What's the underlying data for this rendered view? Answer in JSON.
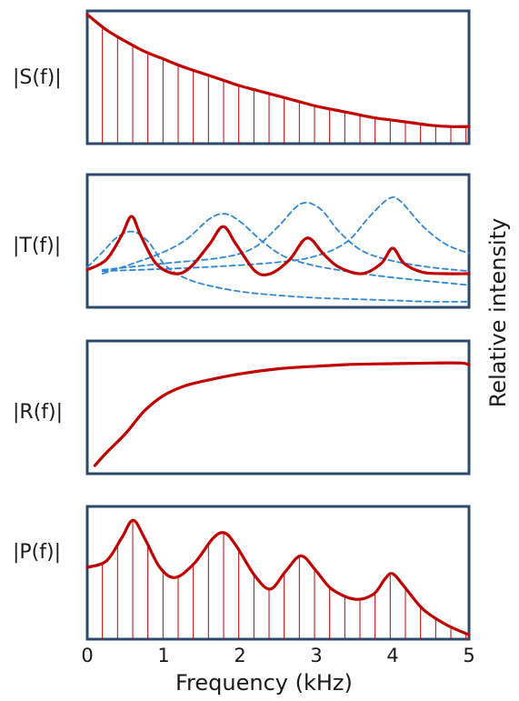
{
  "chart_data": {
    "type": "line",
    "xlabel": "Frequency (kHz)",
    "ylabel": "Relative intensity",
    "xlim": [
      0,
      5
    ],
    "x_ticks": [
      "0",
      "1",
      "2",
      "3",
      "4",
      "5"
    ],
    "colors": {
      "main": "#c00000",
      "stem": "#c00000",
      "dashed": "#2e86d6",
      "frame": "#2c4a6e"
    },
    "panels": [
      {
        "label": "|S(f)|",
        "ylim": [
          0,
          1
        ],
        "stems": true,
        "stem_count": 25,
        "series": [
          {
            "style": "solid",
            "x": [
              0,
              0.25,
              0.5,
              0.75,
              1,
              1.25,
              1.5,
              1.75,
              2,
              2.25,
              2.5,
              2.75,
              3,
              3.25,
              3.5,
              3.75,
              4,
              4.25,
              4.5,
              4.75,
              5
            ],
            "y": [
              1.0,
              0.88,
              0.79,
              0.71,
              0.65,
              0.59,
              0.54,
              0.49,
              0.44,
              0.4,
              0.36,
              0.32,
              0.28,
              0.25,
              0.22,
              0.19,
              0.17,
              0.15,
              0.13,
              0.12,
              0.12
            ]
          }
        ]
      },
      {
        "label": "|T(f)|",
        "ylim": [
          0,
          1
        ],
        "stems": false,
        "series": [
          {
            "style": "solid",
            "x": [
              0,
              0.25,
              0.45,
              0.58,
              0.7,
              0.9,
              1.15,
              1.35,
              1.6,
              1.78,
              1.95,
              2.2,
              2.4,
              2.65,
              2.88,
              3.1,
              3.3,
              3.6,
              3.85,
              4.0,
              4.15,
              4.4,
              4.7,
              5
            ],
            "y": [
              0.28,
              0.36,
              0.55,
              0.7,
              0.55,
              0.33,
              0.25,
              0.3,
              0.48,
              0.62,
              0.48,
              0.27,
              0.25,
              0.36,
              0.53,
              0.4,
              0.3,
              0.25,
              0.33,
              0.45,
              0.33,
              0.26,
              0.25,
              0.25
            ]
          },
          {
            "style": "dashed",
            "x": [
              0,
              0.2,
              0.4,
              0.6,
              0.8,
              1.0,
              1.2,
              1.5,
              2,
              2.5,
              3,
              3.5,
              4,
              4.5,
              5
            ],
            "y": [
              0.3,
              0.42,
              0.54,
              0.58,
              0.5,
              0.33,
              0.24,
              0.17,
              0.11,
              0.08,
              0.06,
              0.05,
              0.04,
              0.03,
              0.03
            ]
          },
          {
            "style": "dashed",
            "x": [
              0.2,
              0.6,
              1.0,
              1.3,
              1.6,
              1.8,
              2.0,
              2.3,
              2.6,
              3.0,
              3.5,
              4.0,
              5
            ],
            "y": [
              0.25,
              0.33,
              0.42,
              0.52,
              0.68,
              0.72,
              0.66,
              0.5,
              0.38,
              0.31,
              0.26,
              0.22,
              0.16
            ]
          },
          {
            "style": "dashed",
            "x": [
              0.2,
              1.0,
              1.8,
              2.2,
              2.5,
              2.8,
              3.05,
              3.3,
              3.6,
              4.0,
              4.5,
              5
            ],
            "y": [
              0.28,
              0.33,
              0.38,
              0.46,
              0.62,
              0.8,
              0.76,
              0.58,
              0.43,
              0.35,
              0.3,
              0.27
            ]
          },
          {
            "style": "dashed",
            "x": [
              0.2,
              1.5,
              2.5,
              3.0,
              3.4,
              3.7,
              3.95,
              4.1,
              4.4,
              4.7,
              5
            ],
            "y": [
              0.27,
              0.3,
              0.34,
              0.39,
              0.5,
              0.7,
              0.84,
              0.82,
              0.62,
              0.48,
              0.41
            ]
          }
        ]
      },
      {
        "label": "|R(f)|",
        "ylim": [
          0,
          1
        ],
        "stems": false,
        "series": [
          {
            "style": "solid",
            "x": [
              0.1,
              0.25,
              0.5,
              0.75,
              1.0,
              1.25,
              1.5,
              2.0,
              2.5,
              3.0,
              3.5,
              4.0,
              4.5,
              4.9,
              5
            ],
            "y": [
              0.05,
              0.15,
              0.3,
              0.48,
              0.6,
              0.67,
              0.71,
              0.77,
              0.81,
              0.83,
              0.845,
              0.85,
              0.855,
              0.855,
              0.84
            ]
          }
        ]
      },
      {
        "label": "|P(f)|",
        "ylim": [
          0,
          1
        ],
        "stems": true,
        "stem_count": 25,
        "series": [
          {
            "style": "solid",
            "x": [
              0,
              0.25,
              0.45,
              0.6,
              0.75,
              0.95,
              1.15,
              1.4,
              1.65,
              1.8,
              1.95,
              2.2,
              2.4,
              2.6,
              2.8,
              3.0,
              3.2,
              3.5,
              3.75,
              3.9,
              4.0,
              4.15,
              4.4,
              4.7,
              5
            ],
            "y": [
              0.55,
              0.6,
              0.78,
              0.92,
              0.78,
              0.55,
              0.47,
              0.58,
              0.78,
              0.82,
              0.72,
              0.48,
              0.38,
              0.52,
              0.64,
              0.52,
              0.38,
              0.3,
              0.34,
              0.46,
              0.5,
              0.4,
              0.22,
              0.1,
              0.02
            ]
          }
        ]
      }
    ]
  }
}
